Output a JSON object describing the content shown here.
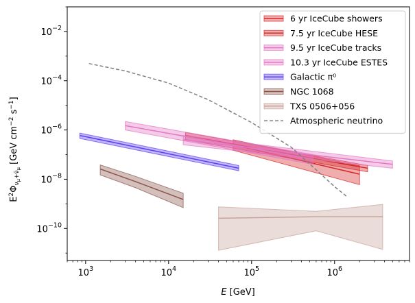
{
  "chart_data": {
    "type": "line",
    "xscale": "log",
    "yscale": "log",
    "xlim": [
      600,
      8000000
    ],
    "ylim": [
      5e-12,
      0.1
    ],
    "grid": false,
    "legend_position": "top-right",
    "xlabel": "E [GeV]",
    "ylabel": "E²Φ_{νμ+ν̄μ} [GeV cm⁻² s⁻¹]",
    "x_ticks": [
      {
        "value": 1000,
        "base": "10",
        "exp": "3"
      },
      {
        "value": 10000,
        "base": "10",
        "exp": "4"
      },
      {
        "value": 100000,
        "base": "10",
        "exp": "5"
      },
      {
        "value": 1000000,
        "base": "10",
        "exp": "6"
      }
    ],
    "y_ticks": [
      {
        "value": 1e-10,
        "base": "10",
        "exp": "−10"
      },
      {
        "value": 1e-08,
        "base": "10",
        "exp": "−8"
      },
      {
        "value": 1e-06,
        "base": "10",
        "exp": "−6"
      },
      {
        "value": 0.0001,
        "base": "10",
        "exp": "−4"
      },
      {
        "value": 0.01,
        "base": "10",
        "exp": "−2"
      }
    ],
    "series": [
      {
        "name": "6 yr IceCube showers",
        "color": "#d62728",
        "x": [
          16000,
          2500000
        ],
        "y": [
          6e-07,
          2.8e-08
        ],
        "band_low": [
          4e-07,
          2e-08
        ],
        "band_high": [
          8e-07,
          3.6e-08
        ]
      },
      {
        "name": "7.5 yr IceCube HESE",
        "color": "#d62728",
        "x": [
          60000,
          2000000
        ],
        "y": [
          2.5e-07,
          1.6e-08
        ],
        "band_low": [
          1.5e-07,
          6e-09
        ],
        "band_high": [
          4e-07,
          3.5e-08
        ]
      },
      {
        "name": "9.5 yr IceCube tracks",
        "color": "#e377c2",
        "x": [
          15000,
          5000000
        ],
        "y": [
          4e-07,
          4e-08
        ],
        "band_low": [
          2.5e-07,
          2.8e-08
        ],
        "band_high": [
          6e-07,
          5.5e-08
        ]
      },
      {
        "name": "10.3 yr IceCube ESTES",
        "color": "#e377c2",
        "x": [
          3000,
          550000
        ],
        "y": [
          1.5e-06,
          6.5e-08
        ],
        "band_low": [
          1e-06,
          4e-08
        ],
        "band_high": [
          2.2e-06,
          1e-07
        ]
      },
      {
        "name": "Galactic π⁰",
        "color": "#5a40f0",
        "x": [
          850,
          70000
        ],
        "y": [
          6e-07,
          2.8e-08
        ],
        "band_low": [
          4.5e-07,
          2.2e-08
        ],
        "band_high": [
          7.5e-07,
          3.6e-08
        ]
      },
      {
        "name": "NGC 1068",
        "color": "#8c564b",
        "x": [
          1500,
          4000,
          15000
        ],
        "y": [
          2.6e-08,
          8e-09,
          1.5e-09
        ],
        "band_low": [
          1.5e-08,
          4.5e-09,
          7e-10
        ],
        "band_high": [
          3.8e-08,
          1.3e-08,
          2.7e-09
        ]
      },
      {
        "name": "TXS 0506+056",
        "color": "#c7a29c",
        "x": [
          40000,
          600000,
          3800000
        ],
        "y": [
          2.6e-10,
          3e-10,
          3e-10
        ],
        "band_low": [
          1.3e-11,
          8e-11,
          1.4e-11
        ],
        "band_high": [
          7.5e-10,
          5e-10,
          9.5e-10
        ]
      },
      {
        "name": "Atmospheric neutrino",
        "color": "#7f7f7f",
        "dashed": true,
        "x": [
          1100,
          3000,
          10000,
          30000,
          100000,
          300000,
          1000000,
          1400000
        ],
        "y": [
          0.0005,
          0.00025,
          8e-05,
          1.7e-05,
          2e-06,
          2e-07,
          5e-09,
          2e-09
        ]
      }
    ]
  }
}
